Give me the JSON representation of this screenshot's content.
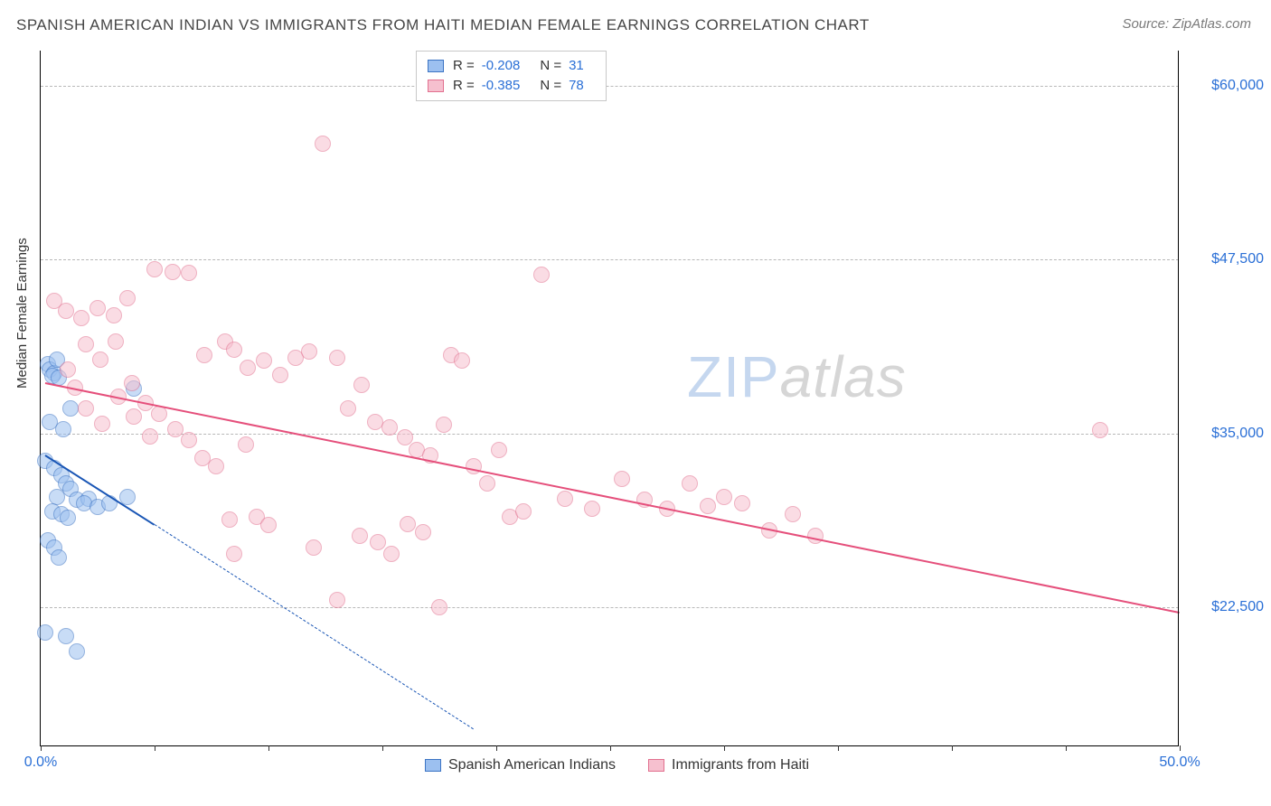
{
  "title": "SPANISH AMERICAN INDIAN VS IMMIGRANTS FROM HAITI MEDIAN FEMALE EARNINGS CORRELATION CHART",
  "source_label": "Source: ZipAtlas.com",
  "ylabel": "Median Female Earnings",
  "watermark": {
    "part1": "ZIP",
    "part2": "atlas"
  },
  "chart": {
    "type": "scatter",
    "xlim": [
      0,
      50
    ],
    "ylim": [
      12500,
      62500
    ],
    "x_tick_positions": [
      0,
      5,
      10,
      15,
      20,
      25,
      30,
      35,
      40,
      45,
      50
    ],
    "x_tick_labels": {
      "0": "0.0%",
      "50": "50.0%"
    },
    "y_gridlines": [
      22500,
      35000,
      47500,
      60000
    ],
    "y_tick_labels": {
      "22500": "$22,500",
      "35000": "$35,000",
      "47500": "$47,500",
      "60000": "$60,000"
    },
    "background_color": "#ffffff",
    "grid_color": "#b8b8b8",
    "axis_color": "#000000",
    "tick_label_color": "#2a6fd6",
    "marker_radius": 9,
    "marker_opacity": 0.55,
    "series": [
      {
        "name": "Spanish American Indians",
        "fill_color": "#9cc0f0",
        "stroke_color": "#3c74c4",
        "trend_color": "#1a56b5",
        "R": "-0.208",
        "N": "31",
        "trend": {
          "x1": 0.2,
          "y1": 33500,
          "x2": 5.0,
          "y2": 28500
        },
        "trend_ext": {
          "x1": 5.0,
          "y1": 28500,
          "x2": 19.0,
          "y2": 13800
        },
        "points": [
          [
            0.3,
            40000
          ],
          [
            0.4,
            39600
          ],
          [
            0.6,
            39300
          ],
          [
            0.5,
            39100
          ],
          [
            0.8,
            39000
          ],
          [
            0.4,
            35800
          ],
          [
            1.0,
            35300
          ],
          [
            0.2,
            33000
          ],
          [
            0.6,
            32500
          ],
          [
            0.9,
            32000
          ],
          [
            1.1,
            31400
          ],
          [
            1.3,
            31000
          ],
          [
            0.7,
            30400
          ],
          [
            1.6,
            30200
          ],
          [
            2.1,
            30300
          ],
          [
            1.9,
            30000
          ],
          [
            0.5,
            29400
          ],
          [
            0.9,
            29200
          ],
          [
            1.2,
            28900
          ],
          [
            2.5,
            29700
          ],
          [
            3.0,
            30000
          ],
          [
            3.8,
            30400
          ],
          [
            4.1,
            38200
          ],
          [
            0.3,
            27300
          ],
          [
            0.6,
            26800
          ],
          [
            0.8,
            26100
          ],
          [
            0.2,
            20700
          ],
          [
            1.1,
            20400
          ],
          [
            1.6,
            19300
          ],
          [
            1.3,
            36800
          ],
          [
            0.7,
            40300
          ]
        ]
      },
      {
        "name": "Immigrants from Haiti",
        "fill_color": "#f6c0cf",
        "stroke_color": "#e2708f",
        "trend_color": "#e54f7b",
        "R": "-0.385",
        "N": "78",
        "trend": {
          "x1": 0.2,
          "y1": 38700,
          "x2": 50.0,
          "y2": 22200
        },
        "points": [
          [
            0.6,
            44500
          ],
          [
            1.1,
            43800
          ],
          [
            1.8,
            43300
          ],
          [
            2.5,
            44000
          ],
          [
            3.2,
            43500
          ],
          [
            3.8,
            44700
          ],
          [
            5.0,
            46800
          ],
          [
            5.8,
            46600
          ],
          [
            6.5,
            46500
          ],
          [
            7.2,
            40600
          ],
          [
            8.1,
            41600
          ],
          [
            8.5,
            41000
          ],
          [
            9.1,
            39700
          ],
          [
            9.8,
            40200
          ],
          [
            10.5,
            39200
          ],
          [
            11.2,
            40400
          ],
          [
            11.8,
            40900
          ],
          [
            12.4,
            55800
          ],
          [
            13.0,
            40400
          ],
          [
            13.5,
            36800
          ],
          [
            14.1,
            38500
          ],
          [
            14.7,
            35800
          ],
          [
            15.3,
            35400
          ],
          [
            16.0,
            34700
          ],
          [
            16.5,
            33800
          ],
          [
            17.1,
            33400
          ],
          [
            17.7,
            35600
          ],
          [
            18.0,
            40600
          ],
          [
            18.5,
            40200
          ],
          [
            19.0,
            32600
          ],
          [
            19.6,
            31400
          ],
          [
            20.1,
            33800
          ],
          [
            20.6,
            29000
          ],
          [
            21.2,
            29400
          ],
          [
            22.0,
            46400
          ],
          [
            2.0,
            41400
          ],
          [
            2.6,
            40300
          ],
          [
            3.3,
            41600
          ],
          [
            4.0,
            38600
          ],
          [
            4.6,
            37200
          ],
          [
            5.2,
            36400
          ],
          [
            5.9,
            35300
          ],
          [
            6.5,
            34500
          ],
          [
            7.1,
            33200
          ],
          [
            7.7,
            32600
          ],
          [
            8.3,
            28800
          ],
          [
            14.0,
            27600
          ],
          [
            14.8,
            27200
          ],
          [
            15.4,
            26300
          ],
          [
            16.1,
            28500
          ],
          [
            16.8,
            27900
          ],
          [
            12.0,
            26800
          ],
          [
            13.0,
            23000
          ],
          [
            8.5,
            26300
          ],
          [
            9.0,
            34200
          ],
          [
            9.5,
            29000
          ],
          [
            10.0,
            28400
          ],
          [
            23.0,
            30300
          ],
          [
            24.2,
            29600
          ],
          [
            25.5,
            31700
          ],
          [
            26.5,
            30200
          ],
          [
            27.5,
            29600
          ],
          [
            28.5,
            31400
          ],
          [
            29.3,
            29800
          ],
          [
            30.0,
            30400
          ],
          [
            30.8,
            30000
          ],
          [
            32.0,
            28000
          ],
          [
            33.0,
            29200
          ],
          [
            34.0,
            27600
          ],
          [
            1.2,
            39600
          ],
          [
            1.5,
            38300
          ],
          [
            2.0,
            36800
          ],
          [
            2.7,
            35700
          ],
          [
            3.4,
            37600
          ],
          [
            4.1,
            36200
          ],
          [
            4.8,
            34800
          ],
          [
            46.5,
            35200
          ],
          [
            17.5,
            22500
          ]
        ]
      }
    ]
  },
  "legend_bottom": [
    {
      "label": "Spanish American Indians",
      "series": 0
    },
    {
      "label": "Immigrants from Haiti",
      "series": 1
    }
  ]
}
